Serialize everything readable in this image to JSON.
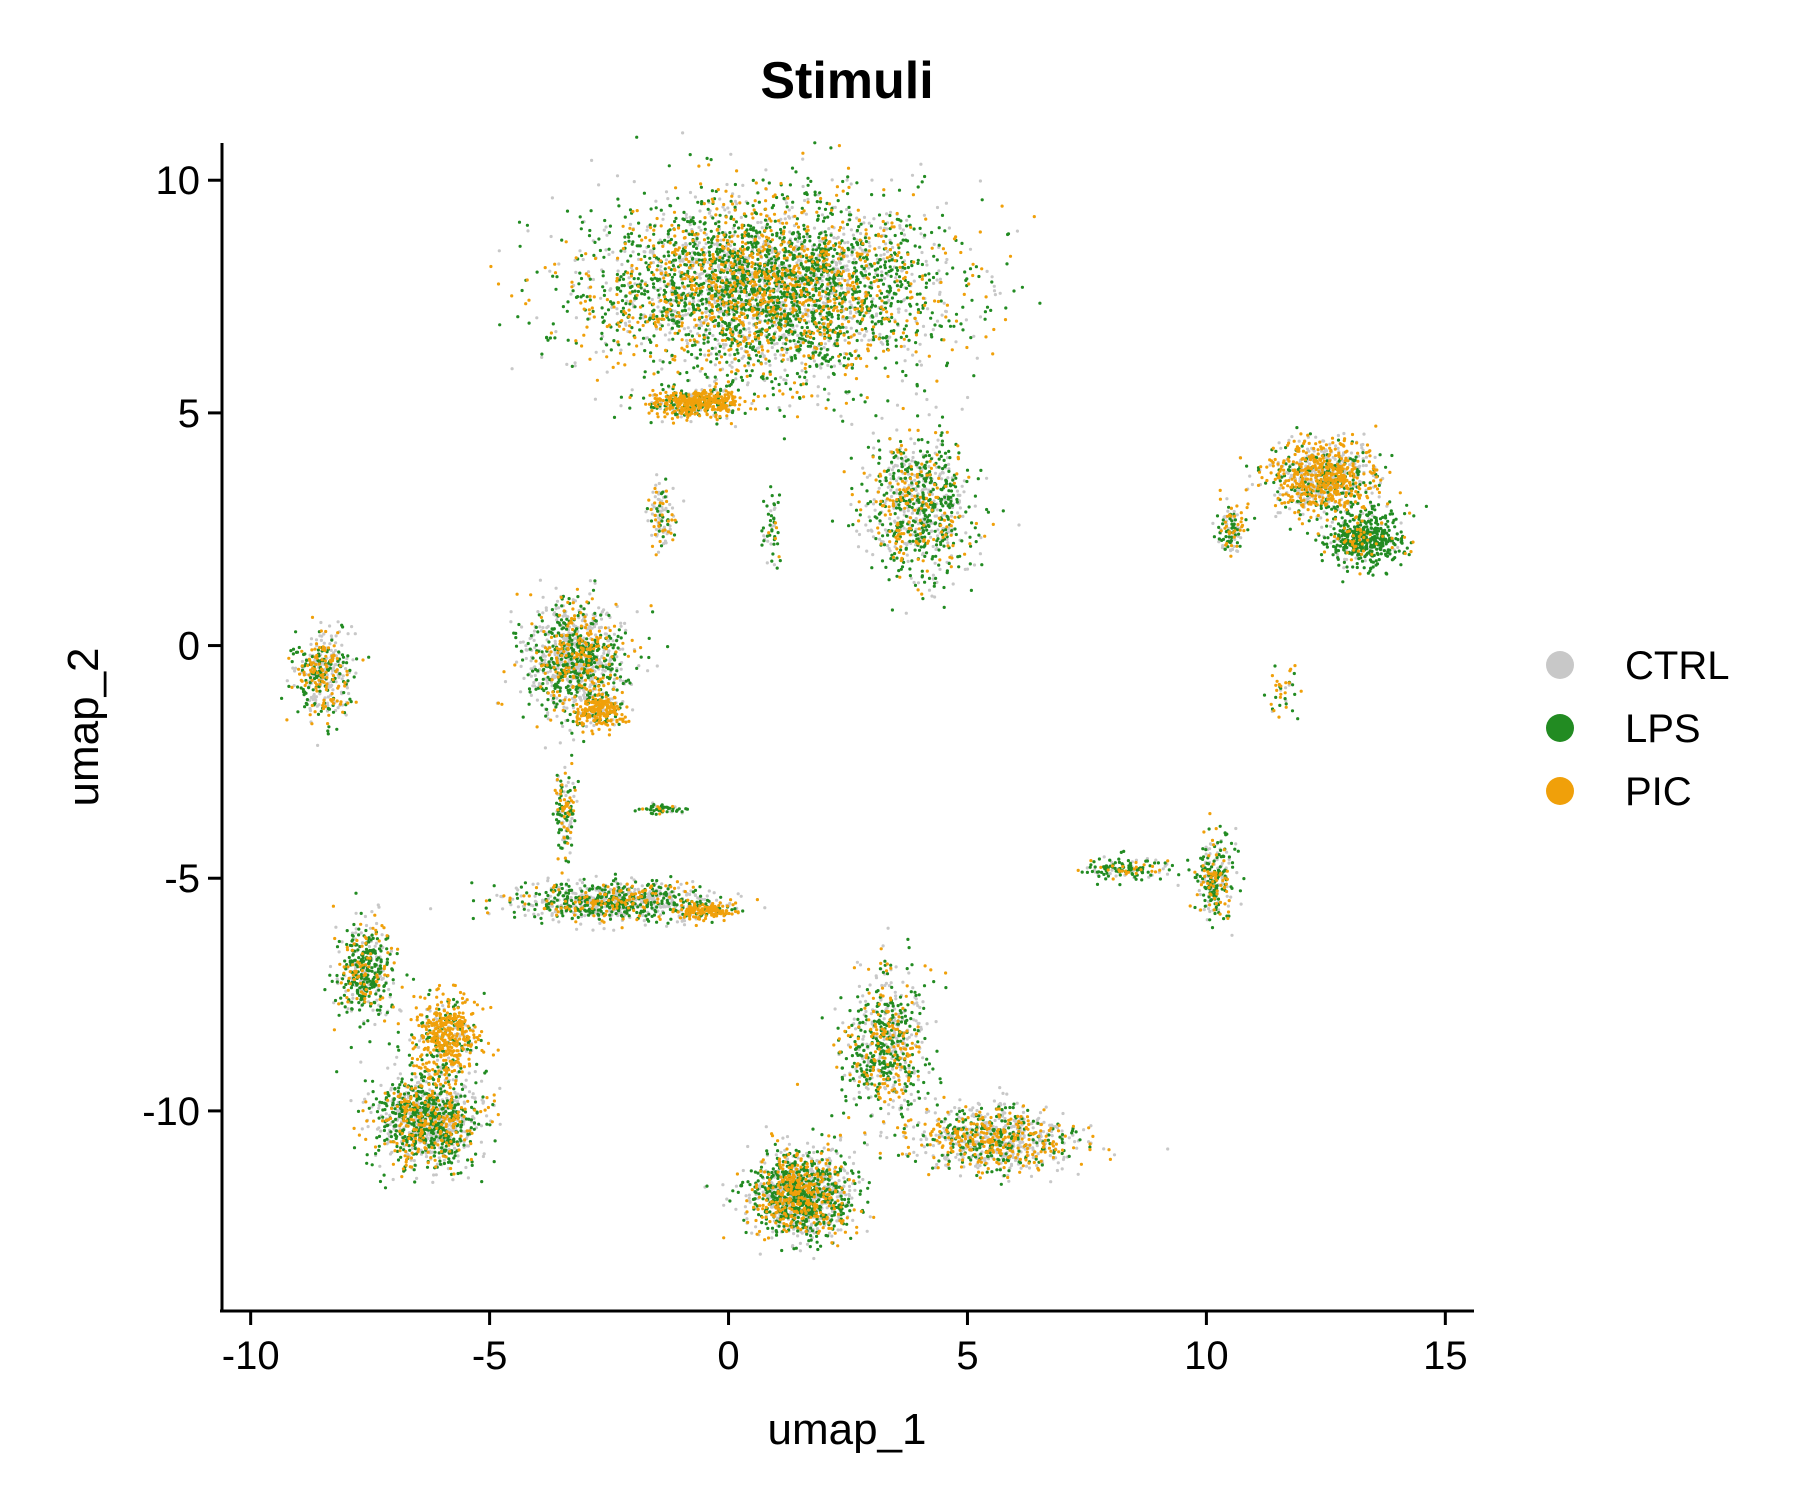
{
  "chart_data": {
    "type": "scatter",
    "title": "Stimuli",
    "xlabel": "umap_1",
    "ylabel": "umap_2",
    "xlim": [
      -10.6,
      15.6
    ],
    "ylim": [
      -14.3,
      10.8
    ],
    "x_ticks": [
      "-10",
      "-5",
      "0",
      "5",
      "10",
      "15"
    ],
    "x_tick_values": [
      -10,
      -5,
      0,
      5,
      10,
      15
    ],
    "y_ticks": [
      "10",
      "5",
      "0",
      "-5",
      "-10"
    ],
    "y_tick_values": [
      10,
      5,
      0,
      -5,
      -10
    ],
    "grid": false,
    "legend_position": "right",
    "series": [
      {
        "name": "CTRL",
        "color": "#C8C8C8"
      },
      {
        "name": "LPS",
        "color": "#228B22"
      },
      {
        "name": "PIC",
        "color": "#F0A00A"
      }
    ],
    "clusters": [
      {
        "center": [
          0.8,
          7.7
        ],
        "spread": [
          3.6,
          1.9
        ],
        "share": [
          0.3,
          0.45,
          0.25
        ],
        "density": 4200
      },
      {
        "center": [
          -0.7,
          5.2
        ],
        "spread": [
          0.9,
          0.3
        ],
        "share": [
          0.15,
          0.2,
          0.65
        ],
        "density": 500
      },
      {
        "center": [
          4.0,
          3.0
        ],
        "spread": [
          1.1,
          1.5
        ],
        "share": [
          0.35,
          0.45,
          0.2
        ],
        "density": 900
      },
      {
        "center": [
          -3.2,
          -0.3
        ],
        "spread": [
          1.0,
          1.2
        ],
        "share": [
          0.45,
          0.35,
          0.2
        ],
        "density": 1100
      },
      {
        "center": [
          -2.7,
          -1.4
        ],
        "spread": [
          0.5,
          0.35
        ],
        "share": [
          0.1,
          0.1,
          0.8
        ],
        "density": 220
      },
      {
        "center": [
          -3.4,
          -3.5
        ],
        "spread": [
          0.2,
          1.0
        ],
        "share": [
          0.3,
          0.4,
          0.3
        ],
        "density": 140
      },
      {
        "center": [
          -2.4,
          -5.5
        ],
        "spread": [
          2.1,
          0.4
        ],
        "share": [
          0.45,
          0.4,
          0.15
        ],
        "density": 900
      },
      {
        "center": [
          -0.5,
          -5.7
        ],
        "spread": [
          0.6,
          0.15
        ],
        "share": [
          0.1,
          0.1,
          0.8
        ],
        "density": 160
      },
      {
        "center": [
          -8.5,
          -0.6
        ],
        "spread": [
          0.6,
          0.9
        ],
        "share": [
          0.45,
          0.3,
          0.25
        ],
        "density": 420
      },
      {
        "center": [
          -6.3,
          -10.2
        ],
        "spread": [
          1.1,
          1.0
        ],
        "share": [
          0.4,
          0.4,
          0.2
        ],
        "density": 1200
      },
      {
        "center": [
          -5.9,
          -8.4
        ],
        "spread": [
          0.7,
          0.9
        ],
        "share": [
          0.1,
          0.2,
          0.7
        ],
        "density": 500
      },
      {
        "center": [
          -7.6,
          -7.0
        ],
        "spread": [
          0.6,
          1.1
        ],
        "share": [
          0.3,
          0.5,
          0.2
        ],
        "density": 450
      },
      {
        "center": [
          1.5,
          -11.8
        ],
        "spread": [
          1.1,
          0.9
        ],
        "share": [
          0.35,
          0.4,
          0.25
        ],
        "density": 1400
      },
      {
        "center": [
          3.3,
          -8.6
        ],
        "spread": [
          0.9,
          1.5
        ],
        "share": [
          0.35,
          0.4,
          0.25
        ],
        "density": 700
      },
      {
        "center": [
          5.6,
          -10.6
        ],
        "spread": [
          1.7,
          0.7
        ],
        "share": [
          0.45,
          0.25,
          0.3
        ],
        "density": 900
      },
      {
        "center": [
          12.4,
          3.6
        ],
        "spread": [
          1.1,
          0.8
        ],
        "share": [
          0.35,
          0.2,
          0.45
        ],
        "density": 1000
      },
      {
        "center": [
          13.3,
          2.3
        ],
        "spread": [
          0.8,
          0.6
        ],
        "share": [
          0.1,
          0.8,
          0.1
        ],
        "density": 500
      },
      {
        "center": [
          10.5,
          2.5
        ],
        "spread": [
          0.3,
          0.6
        ],
        "share": [
          0.4,
          0.3,
          0.3
        ],
        "density": 120
      },
      {
        "center": [
          10.2,
          -5.0
        ],
        "spread": [
          0.4,
          0.9
        ],
        "share": [
          0.3,
          0.5,
          0.2
        ],
        "density": 260
      },
      {
        "center": [
          8.4,
          -4.8
        ],
        "spread": [
          1.0,
          0.25
        ],
        "share": [
          0.2,
          0.6,
          0.2
        ],
        "density": 150
      },
      {
        "center": [
          -1.4,
          2.8
        ],
        "spread": [
          0.25,
          0.7
        ],
        "share": [
          0.4,
          0.3,
          0.3
        ],
        "density": 110
      },
      {
        "center": [
          0.9,
          2.5
        ],
        "spread": [
          0.2,
          0.7
        ],
        "share": [
          0.3,
          0.6,
          0.1
        ],
        "density": 50
      },
      {
        "center": [
          11.6,
          -1.0
        ],
        "spread": [
          0.3,
          0.6
        ],
        "share": [
          0.1,
          0.4,
          0.5
        ],
        "density": 40
      },
      {
        "center": [
          -1.4,
          -3.5
        ],
        "spread": [
          0.6,
          0.1
        ],
        "share": [
          0.2,
          0.7,
          0.1
        ],
        "density": 50
      }
    ]
  }
}
